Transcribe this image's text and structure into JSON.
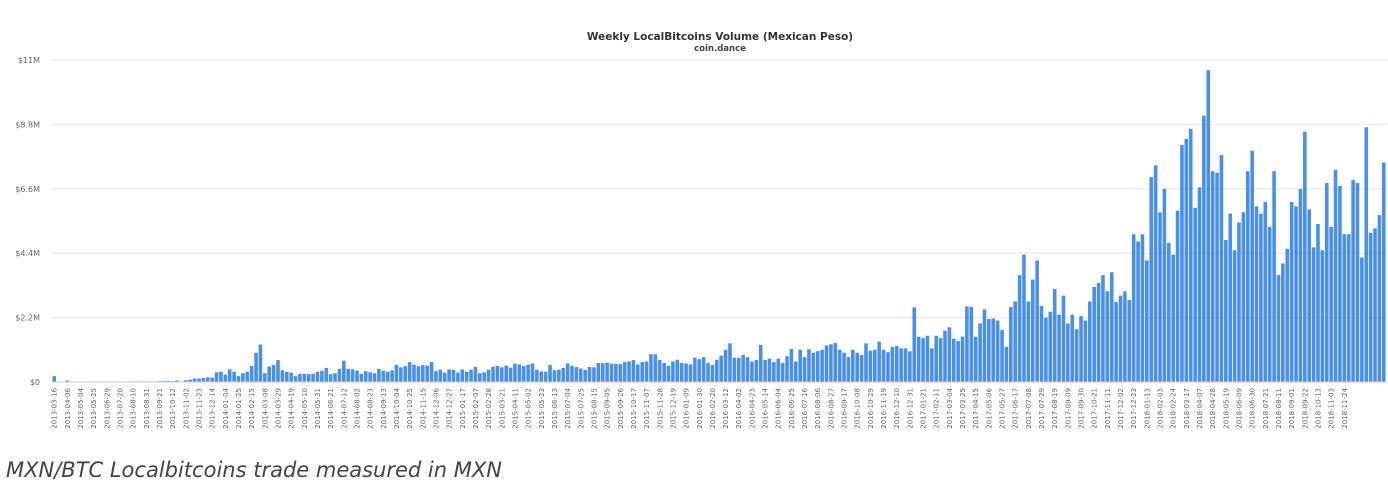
{
  "colors": {
    "bar": "#4a90e8",
    "highlight_bar": "#6aa6ec",
    "highlight_band": "#d9d9d9",
    "grid": "#e6e6e6",
    "axis_text": "#666666",
    "title": "#333333"
  },
  "caption": "MXN/BTC Localbitcoins trade measured in MXN",
  "chart_data": {
    "type": "bar",
    "title": "Weekly LocalBitcoins Volume (Mexican Peso)",
    "subtitle": "coin.dance",
    "xlabel": "",
    "ylabel": "",
    "ylim": [
      0,
      11000000
    ],
    "y_ticks": [
      0,
      2200000,
      4400000,
      6600000,
      8800000,
      11000000
    ],
    "y_tick_labels": [
      "$0",
      "$2.2M",
      "$4.4M",
      "$6.6M",
      "$8.8M",
      "$11M"
    ],
    "grid": true,
    "x_tick_labels": [
      "2013-03-16",
      "2013-04-06",
      "2013-05-04",
      "2013-05-25",
      "2013-06-29",
      "2013-07-20",
      "2013-08-10",
      "2013-08-31",
      "2013-09-21",
      "2013-10-12",
      "2013-11-02",
      "2013-11-23",
      "2013-12-14",
      "2014-01-04",
      "2014-01-25",
      "2014-02-15",
      "2014-03-08",
      "2014-03-29",
      "2014-04-19",
      "2014-05-10",
      "2014-05-31",
      "2014-06-21",
      "2014-07-12",
      "2014-08-02",
      "2014-08-23",
      "2014-09-13",
      "2014-10-04",
      "2014-10-25",
      "2014-11-15",
      "2014-12-06",
      "2014-12-27",
      "2015-01-17",
      "2015-02-07",
      "2015-02-28",
      "2015-03-21",
      "2015-04-11",
      "2015-05-02",
      "2015-05-23",
      "2015-06-13",
      "2015-07-04",
      "2015-07-25",
      "2015-08-15",
      "2015-09-05",
      "2015-09-26",
      "2015-10-17",
      "2015-11-07",
      "2015-11-28",
      "2015-12-19",
      "2016-01-09",
      "2016-01-30",
      "2016-02-20",
      "2016-03-12",
      "2016-04-02",
      "2016-04-23",
      "2016-05-14",
      "2016-06-04",
      "2016-06-25",
      "2016-07-16",
      "2016-08-06",
      "2016-08-27",
      "2016-09-17",
      "2016-10-08",
      "2016-10-29",
      "2016-11-19",
      "2016-12-10",
      "2016-12-31",
      "2017-01-21",
      "2017-02-11",
      "2017-03-04",
      "2017-03-25",
      "2017-04-15",
      "2017-05-06",
      "2017-05-27",
      "2017-06-17",
      "2017-07-08",
      "2017-07-29",
      "2017-08-19",
      "2017-09-09",
      "2017-09-30",
      "2017-10-21",
      "2017-11-11",
      "2017-12-02",
      "2017-12-23",
      "2018-01-13",
      "2018-02-03",
      "2018-02-24",
      "2018-03-17",
      "2018-04-07",
      "2018-04-28",
      "2018-05-19",
      "2018-06-09",
      "2018-06-30",
      "2018-07-21",
      "2018-08-11",
      "2018-09-01",
      "2018-09-22",
      "2018-10-13",
      "2018-11-03",
      "2018-11-24"
    ],
    "highlight_index": 324,
    "values": [
      200000,
      0,
      10000,
      50000,
      20000,
      10000,
      10000,
      10000,
      20000,
      10000,
      20000,
      10000,
      10000,
      20000,
      20000,
      10000,
      10000,
      20000,
      20000,
      20000,
      20000,
      20000,
      20000,
      20000,
      30000,
      30000,
      40000,
      30000,
      50000,
      20000,
      60000,
      80000,
      120000,
      120000,
      140000,
      160000,
      150000,
      330000,
      350000,
      250000,
      430000,
      350000,
      200000,
      300000,
      350000,
      550000,
      1000000,
      1280000,
      300000,
      530000,
      580000,
      750000,
      400000,
      350000,
      320000,
      200000,
      280000,
      280000,
      270000,
      280000,
      350000,
      380000,
      480000,
      270000,
      300000,
      450000,
      730000,
      450000,
      430000,
      390000,
      280000,
      370000,
      330000,
      300000,
      450000,
      380000,
      350000,
      400000,
      580000,
      500000,
      540000,
      680000,
      590000,
      540000,
      580000,
      560000,
      680000,
      370000,
      420000,
      320000,
      430000,
      410000,
      320000,
      430000,
      350000,
      420000,
      520000,
      300000,
      330000,
      420000,
      520000,
      550000,
      500000,
      560000,
      490000,
      630000,
      600000,
      550000,
      590000,
      630000,
      420000,
      360000,
      350000,
      580000,
      400000,
      420000,
      480000,
      630000,
      550000,
      510000,
      460000,
      410000,
      510000,
      500000,
      650000,
      640000,
      660000,
      630000,
      620000,
      610000,
      680000,
      700000,
      750000,
      600000,
      680000,
      700000,
      950000,
      950000,
      750000,
      650000,
      550000,
      700000,
      760000,
      650000,
      630000,
      600000,
      830000,
      780000,
      850000,
      650000,
      580000,
      760000,
      900000,
      1100000,
      1320000,
      830000,
      820000,
      920000,
      850000,
      700000,
      750000,
      1270000,
      750000,
      800000,
      680000,
      800000,
      650000,
      880000,
      1130000,
      700000,
      1100000,
      850000,
      1120000,
      1000000,
      1050000,
      1100000,
      1250000,
      1290000,
      1330000,
      1100000,
      1000000,
      850000,
      1100000,
      1000000,
      920000,
      1320000,
      1070000,
      1100000,
      1380000,
      1100000,
      1020000,
      1200000,
      1230000,
      1150000,
      1150000,
      1050000,
      2550000,
      1550000,
      1500000,
      1580000,
      1150000,
      1580000,
      1500000,
      1750000,
      1870000,
      1480000,
      1400000,
      1550000,
      2580000,
      2570000,
      1550000,
      2000000,
      2480000,
      2150000,
      2170000,
      2100000,
      1780000,
      1200000,
      2560000,
      2750000,
      3650000,
      4350000,
      2750000,
      3500000,
      4150000,
      2600000,
      2200000,
      2400000,
      3180000,
      2300000,
      2950000,
      2000000,
      2300000,
      1800000,
      2250000,
      2100000,
      2750000,
      3250000,
      3380000,
      3650000,
      3100000,
      3750000,
      2730000,
      2950000,
      3100000,
      2800000,
      5050000,
      4800000,
      5050000,
      4150000,
      7000000,
      7400000,
      5800000,
      6600000,
      4750000,
      4350000,
      5850000,
      8100000,
      8300000,
      8650000,
      5950000,
      6650000,
      9100000,
      10650000,
      7200000,
      7150000,
      7750000,
      4850000,
      5750000,
      4500000,
      5450000,
      5800000,
      7200000,
      7900000,
      6000000,
      5750000,
      6150000,
      5300000,
      7200000,
      3650000,
      4050000,
      4550000,
      6150000,
      6000000,
      6600000,
      8550000,
      5900000,
      4600000,
      5400000,
      4500000,
      6800000,
      5300000,
      7250000,
      6700000,
      5050000,
      5050000,
      6900000,
      6800000,
      4250000,
      8700000,
      5100000,
      5250000,
      5700000,
      7500000
    ]
  }
}
